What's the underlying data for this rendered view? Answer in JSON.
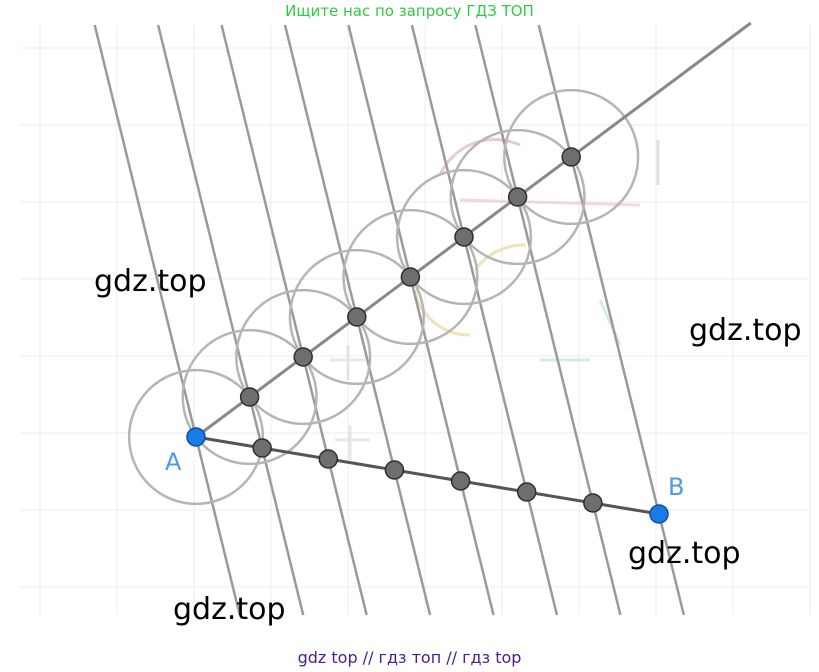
{
  "banner": {
    "text": "Ищите нас по запросу ГДЗ ТОП",
    "color": "#2ecc40"
  },
  "caption": {
    "text": "gdz top  //  гдз топ  //  гдз top",
    "color": "#4b1c8c"
  },
  "watermarks": [
    "gdz.top",
    "gdz.top",
    "gdz.top",
    "gdz.top"
  ],
  "diagram": {
    "point_a_label": "A",
    "point_b_label": "B",
    "endpoint_color": "#1a7be8",
    "label_color": "#4a9be8",
    "division_point_color": "#6e6e6e",
    "line_color": "#888888",
    "circle_color": "#b5b5b5",
    "equal_segments": 7
  }
}
